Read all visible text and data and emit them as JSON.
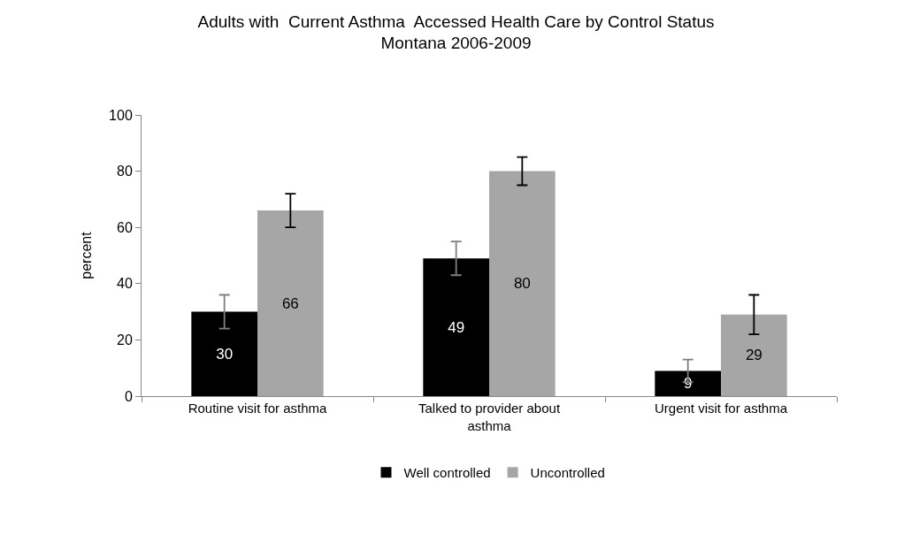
{
  "chart_data": {
    "type": "bar",
    "title": "Adults with  Current Asthma  Accessed Health Care by Control Status\nMontana 2006-2009",
    "ylabel": "percent",
    "categories": [
      "Routine visit for asthma",
      "Talked to provider about asthma",
      "Urgent visit for asthma"
    ],
    "series": [
      {
        "name": "Well controlled",
        "color": "#000000",
        "values": [
          30,
          49,
          9
        ],
        "errors": [
          [
            24,
            36
          ],
          [
            43,
            55
          ],
          [
            5,
            13
          ]
        ]
      },
      {
        "name": "Uncontrolled",
        "color": "#a6a6a6",
        "values": [
          66,
          80,
          29
        ],
        "errors": [
          [
            60,
            72
          ],
          [
            75,
            85
          ],
          [
            22,
            36
          ]
        ]
      }
    ],
    "ylim": [
      0,
      100
    ],
    "yticks": [
      0,
      20,
      40,
      60,
      80,
      100
    ],
    "legend": "bottom",
    "data_labels": true
  }
}
